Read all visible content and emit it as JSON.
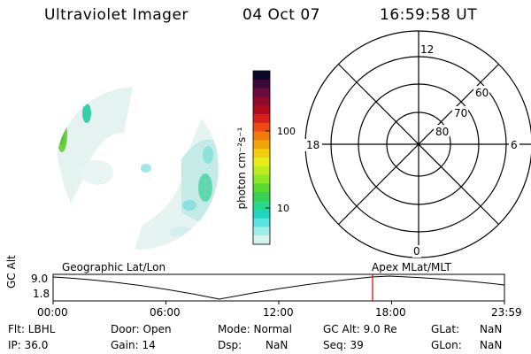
{
  "header": {
    "instrument": "Ultraviolet Imager",
    "date": "04 Oct 07",
    "time": "16:59:58 UT"
  },
  "colorbar": {
    "label": "photon cm⁻²s⁻¹",
    "ticks": [
      "100",
      "10"
    ],
    "colors": [
      "#0a0a28",
      "#3a0a3a",
      "#6a0a40",
      "#900a2a",
      "#b00a1e",
      "#d8201a",
      "#f04a14",
      "#f07a0a",
      "#f0a40a",
      "#f2cc0c",
      "#e8ec18",
      "#bcec20",
      "#8ee82a",
      "#5ad82e",
      "#38d058",
      "#28d88c",
      "#20d4c0",
      "#5ce4e2",
      "#a0ece8",
      "#d8f2ee"
    ]
  },
  "polar_plot": {
    "mlt_labels": [
      "12",
      "6",
      "18",
      "0"
    ],
    "lat_labels": [
      "60",
      "70",
      "80"
    ]
  },
  "timeline": {
    "y_axis_label": "GC Alt",
    "y_ticks": [
      "9.0",
      "1.8"
    ],
    "left_title": "Geographic Lat/Lon",
    "right_title": "Apex MLat/MLT",
    "time_ticks": [
      "00:00",
      "06:00",
      "12:00",
      "18:00",
      "23:59"
    ],
    "marker_color": "#cc0000"
  },
  "info": {
    "row1": [
      "Flt: LBHL",
      "Door: Open",
      "Mode: Normal",
      "GC Alt: 9.0 Re",
      "GLat:",
      "NaN"
    ],
    "row2": [
      "IP: 36.0",
      "Gain: 14",
      "Dsp:",
      "NaN",
      "Seq: 39",
      "GLon:",
      "NaN"
    ]
  }
}
